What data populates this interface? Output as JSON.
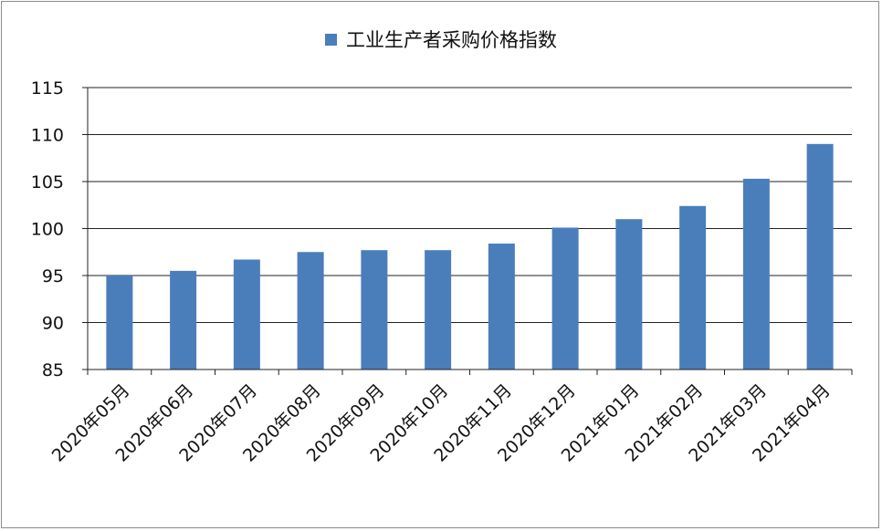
{
  "chart_data": {
    "type": "bar",
    "legend": "工业生产者采购价格指数",
    "legend_position": "top",
    "categories": [
      "2020年05月",
      "2020年06月",
      "2020年07月",
      "2020年08月",
      "2020年09月",
      "2020年10月",
      "2020年11月",
      "2020年12月",
      "2021年01月",
      "2021年02月",
      "2021年03月",
      "2021年04月"
    ],
    "series": [
      {
        "name": "工业生产者采购价格指数",
        "values": [
          95.0,
          95.5,
          96.7,
          97.5,
          97.7,
          97.7,
          98.4,
          100.1,
          101.0,
          102.4,
          105.3,
          109.0
        ]
      }
    ],
    "ylim": [
      85,
      115
    ],
    "yticks": [
      85,
      90,
      95,
      100,
      105,
      110,
      115
    ],
    "grid": true,
    "bar_color": "#4a7ebb"
  }
}
